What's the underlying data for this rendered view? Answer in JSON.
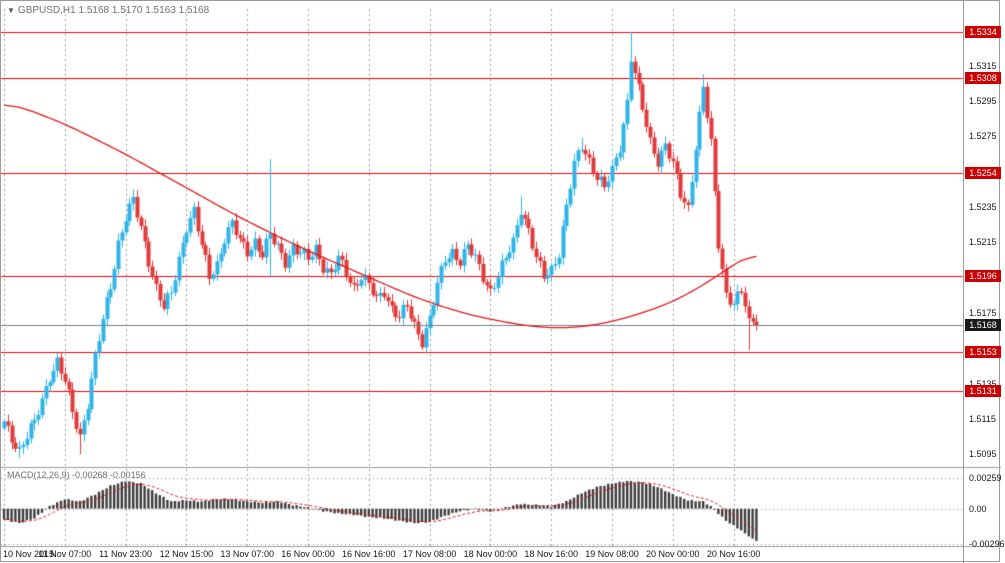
{
  "header": {
    "marker": "▼",
    "title": "GBPUSD,H1 1.5168 1.5170 1.5163 1.5168"
  },
  "colors": {
    "bull": "#2fb3e8",
    "bear": "#e23a3a",
    "level_line": "#ff0000",
    "badge_red": "#cc0000",
    "badge_black": "#1a1a1a",
    "ma_line": "#e01818",
    "price_line": "#708090",
    "grid": "#a0a0a0",
    "separator": "#9a9a9a",
    "macd_bar": "#3c3c3c",
    "macd_signal": "#dd2222"
  },
  "chart_data": [
    {
      "type": "candlestick",
      "title": "GBPUSD,H1",
      "symbol": "GBPUSD",
      "timeframe": "H1",
      "ohlc_display": {
        "open": "1.5168",
        "high": "1.5170",
        "low": "1.5163",
        "close": "1.5168"
      },
      "num_candles": 199,
      "ylim": [
        1.509,
        1.5347
      ],
      "y_ticks": [
        1.5315,
        1.5295,
        1.5275,
        1.5235,
        1.5215,
        1.5175,
        1.5135,
        1.5115,
        1.5095
      ],
      "level_lines": [
        1.5334,
        1.5308,
        1.5254,
        1.5196,
        1.5153,
        1.5131
      ],
      "current_price": 1.5168,
      "x_tick_labels": [
        "10 Nov 2015",
        "11 Nov 07:00",
        "11 Nov 23:00",
        "12 Nov 15:00",
        "13 Nov 07:00",
        "16 Nov 00:00",
        "16 Nov 16:00",
        "17 Nov 08:00",
        "18 Nov 00:00",
        "18 Nov 16:00",
        "19 Nov 08:00",
        "20 Nov 00:00",
        "20 Nov 16:00"
      ],
      "x_tick_indices": [
        0,
        16,
        32,
        48,
        64,
        80,
        96,
        112,
        128,
        144,
        160,
        176,
        192
      ],
      "close_anchors": [
        [
          0,
          1.5112
        ],
        [
          2,
          1.5104
        ],
        [
          4,
          1.5098
        ],
        [
          6,
          1.5106
        ],
        [
          8,
          1.5112
        ],
        [
          10,
          1.5125
        ],
        [
          12,
          1.514
        ],
        [
          14,
          1.5148
        ],
        [
          16,
          1.5136
        ],
        [
          18,
          1.5118
        ],
        [
          20,
          1.5105
        ],
        [
          22,
          1.5125
        ],
        [
          24,
          1.515
        ],
        [
          26,
          1.517
        ],
        [
          28,
          1.519
        ],
        [
          30,
          1.5215
        ],
        [
          32,
          1.523
        ],
        [
          34,
          1.5238
        ],
        [
          36,
          1.5222
        ],
        [
          38,
          1.5205
        ],
        [
          40,
          1.519
        ],
        [
          42,
          1.5178
        ],
        [
          44,
          1.5185
        ],
        [
          46,
          1.5205
        ],
        [
          48,
          1.5225
        ],
        [
          50,
          1.5233
        ],
        [
          52,
          1.5212
        ],
        [
          54,
          1.5195
        ],
        [
          56,
          1.5203
        ],
        [
          58,
          1.5218
        ],
        [
          60,
          1.5225
        ],
        [
          62,
          1.5215
        ],
        [
          64,
          1.521
        ],
        [
          66,
          1.5216
        ],
        [
          68,
          1.5208
        ],
        [
          70,
          1.5218
        ],
        [
          72,
          1.5212
        ],
        [
          74,
          1.5205
        ],
        [
          76,
          1.5212
        ],
        [
          78,
          1.5208
        ],
        [
          80,
          1.5205
        ],
        [
          82,
          1.5212
        ],
        [
          84,
          1.5202
        ],
        [
          86,
          1.5196
        ],
        [
          88,
          1.5205
        ],
        [
          90,
          1.5198
        ],
        [
          92,
          1.519
        ],
        [
          94,
          1.5196
        ],
        [
          96,
          1.519
        ],
        [
          98,
          1.5182
        ],
        [
          100,
          1.5188
        ],
        [
          102,
          1.5178
        ],
        [
          104,
          1.5172
        ],
        [
          106,
          1.5178
        ],
        [
          108,
          1.5168
        ],
        [
          110,
          1.516
        ],
        [
          112,
          1.5172
        ],
        [
          114,
          1.519
        ],
        [
          116,
          1.5205
        ],
        [
          118,
          1.521
        ],
        [
          120,
          1.5205
        ],
        [
          122,
          1.5212
        ],
        [
          124,
          1.5205
        ],
        [
          126,
          1.5196
        ],
        [
          128,
          1.5188
        ],
        [
          130,
          1.5196
        ],
        [
          132,
          1.5205
        ],
        [
          134,
          1.5215
        ],
        [
          136,
          1.5235
        ],
        [
          138,
          1.5222
        ],
        [
          140,
          1.5205
        ],
        [
          142,
          1.5195
        ],
        [
          144,
          1.52
        ],
        [
          146,
          1.521
        ],
        [
          148,
          1.5235
        ],
        [
          150,
          1.5258
        ],
        [
          152,
          1.527
        ],
        [
          154,
          1.5262
        ],
        [
          156,
          1.5252
        ],
        [
          158,
          1.5245
        ],
        [
          160,
          1.5255
        ],
        [
          162,
          1.527
        ],
        [
          164,
          1.5295
        ],
        [
          165,
          1.532
        ],
        [
          166,
          1.531
        ],
        [
          168,
          1.529
        ],
        [
          170,
          1.5272
        ],
        [
          172,
          1.5262
        ],
        [
          174,
          1.527
        ],
        [
          176,
          1.5258
        ],
        [
          178,
          1.5242
        ],
        [
          180,
          1.5235
        ],
        [
          182,
          1.527
        ],
        [
          184,
          1.5302
        ],
        [
          186,
          1.527
        ],
        [
          188,
          1.5215
        ],
        [
          190,
          1.5186
        ],
        [
          192,
          1.518
        ],
        [
          194,
          1.5186
        ],
        [
          196,
          1.5172
        ],
        [
          198,
          1.5168
        ]
      ],
      "spikes": [
        {
          "i": 4,
          "low": 1.5093
        },
        {
          "i": 20,
          "low": 1.5095
        },
        {
          "i": 34,
          "high": 1.5245
        },
        {
          "i": 70,
          "high": 1.5262,
          "low": 1.5196
        },
        {
          "i": 110,
          "low": 1.5154
        },
        {
          "i": 136,
          "high": 1.5241
        },
        {
          "i": 152,
          "high": 1.5274
        },
        {
          "i": 165,
          "high": 1.5334
        },
        {
          "i": 184,
          "high": 1.531
        },
        {
          "i": 196,
          "low": 1.5154
        }
      ],
      "ma_anchors": [
        [
          0,
          1.5295
        ],
        [
          15,
          1.5283
        ],
        [
          31,
          1.5266
        ],
        [
          47,
          1.5247
        ],
        [
          62,
          1.5229
        ],
        [
          78,
          1.5212
        ],
        [
          94,
          1.5197
        ],
        [
          109,
          1.5183
        ],
        [
          122,
          1.5174
        ],
        [
          136,
          1.5168
        ],
        [
          146,
          1.5166
        ],
        [
          156,
          1.5168
        ],
        [
          167,
          1.5174
        ],
        [
          177,
          1.5182
        ],
        [
          185,
          1.5192
        ],
        [
          192,
          1.5202
        ],
        [
          198,
          1.5212
        ]
      ]
    },
    {
      "type": "bar",
      "name": "MACD(12,26,9)",
      "label": "MACD(12,26,9) -0.00268 -0.00156",
      "ylim": [
        -0.0031,
        0.0033
      ],
      "y_ticks": [
        0.00259,
        0,
        -0.00296
      ],
      "y_tick_labels": [
        "0.00259",
        "0.00",
        "-0.00296"
      ],
      "signal_period": 9,
      "macd_anchors": [
        [
          0,
          -0.0009
        ],
        [
          4,
          -0.0012
        ],
        [
          8,
          -0.0008
        ],
        [
          12,
          0.0002
        ],
        [
          16,
          0.0008
        ],
        [
          20,
          0.0006
        ],
        [
          24,
          0.0012
        ],
        [
          28,
          0.0019
        ],
        [
          32,
          0.0023
        ],
        [
          36,
          0.0021
        ],
        [
          40,
          0.0013
        ],
        [
          44,
          0.0006
        ],
        [
          48,
          0.0007
        ],
        [
          52,
          0.0006
        ],
        [
          56,
          0.0008
        ],
        [
          60,
          0.0008
        ],
        [
          64,
          0.0006
        ],
        [
          68,
          0.0005
        ],
        [
          72,
          0.0006
        ],
        [
          76,
          0.0003
        ],
        [
          80,
          0.0001
        ],
        [
          84,
          -0.0002
        ],
        [
          88,
          -0.0004
        ],
        [
          92,
          -0.0005
        ],
        [
          96,
          -0.0007
        ],
        [
          100,
          -0.0008
        ],
        [
          104,
          -0.001
        ],
        [
          108,
          -0.0012
        ],
        [
          112,
          -0.0011
        ],
        [
          116,
          -0.0006
        ],
        [
          120,
          -0.0002
        ],
        [
          124,
          0
        ],
        [
          128,
          -0.0002
        ],
        [
          132,
          0.0001
        ],
        [
          136,
          0.0004
        ],
        [
          140,
          0.0003
        ],
        [
          144,
          0.0002
        ],
        [
          148,
          0.0006
        ],
        [
          152,
          0.0013
        ],
        [
          156,
          0.0018
        ],
        [
          160,
          0.0021
        ],
        [
          164,
          0.0023
        ],
        [
          168,
          0.0022
        ],
        [
          172,
          0.0018
        ],
        [
          176,
          0.0012
        ],
        [
          180,
          0.0007
        ],
        [
          184,
          0.0006
        ],
        [
          186,
          0.0002
        ],
        [
          188,
          -0.0004
        ],
        [
          190,
          -0.001
        ],
        [
          192,
          -0.0014
        ],
        [
          194,
          -0.0018
        ],
        [
          196,
          -0.0023
        ],
        [
          198,
          -0.00268
        ]
      ]
    }
  ]
}
